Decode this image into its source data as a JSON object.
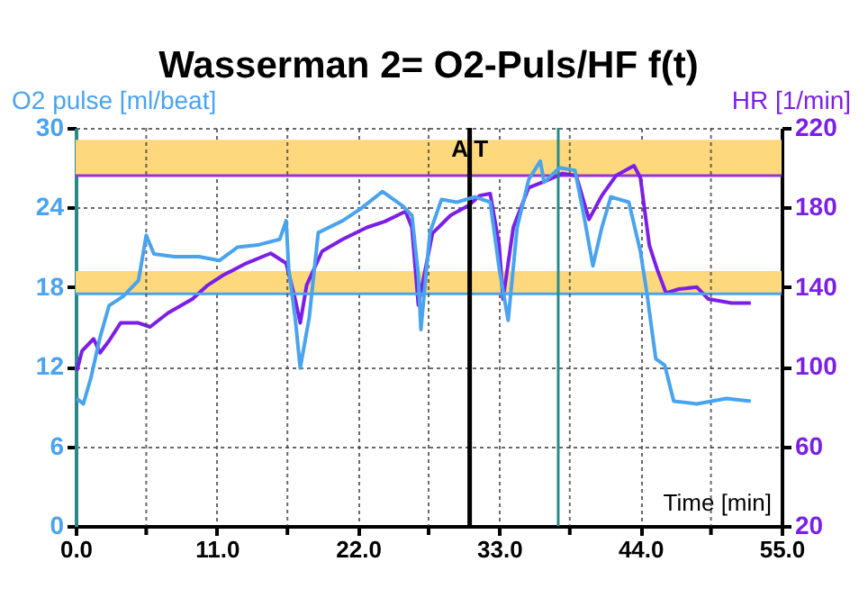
{
  "chart_data": {
    "type": "line",
    "title": "Wasserman 2= O2-Puls/HF f(t)",
    "xlabel": "Time [min]",
    "ylabel": "O2 pulse [ml/beat]",
    "y2label": "HR [1/min]",
    "xlim": [
      0,
      55
    ],
    "xticks": [
      {
        "value": 0,
        "label": "0.0"
      },
      {
        "value": 5.5,
        "label": null
      },
      {
        "value": 11,
        "label": "11.0"
      },
      {
        "value": 16.5,
        "label": null
      },
      {
        "value": 22,
        "label": "22.0"
      },
      {
        "value": 27.5,
        "label": null
      },
      {
        "value": 33,
        "label": "33.0"
      },
      {
        "value": 38.5,
        "label": null
      },
      {
        "value": 44,
        "label": "44.0"
      },
      {
        "value": 49.5,
        "label": null
      },
      {
        "value": 55,
        "label": "55.0"
      }
    ],
    "ylim": [
      0,
      30
    ],
    "yticks": [
      0,
      6,
      12,
      18,
      24,
      30
    ],
    "y2lim": [
      20,
      220
    ],
    "y2ticks": [
      20,
      60,
      100,
      140,
      180,
      220
    ],
    "grid": true,
    "series": [
      {
        "color": "#4aa3ef",
        "x": [
          0.1,
          0.6,
          1.2,
          1.9,
          2.6,
          3.7,
          4.9,
          5.5,
          6.1,
          7.7,
          9.6,
          11.2,
          12.6,
          14.3,
          15.9,
          16.4,
          16.6,
          17.1,
          17.5,
          18.2,
          18.9,
          20.8,
          22.2,
          23.9,
          25.5,
          26.2,
          26.7,
          26.9,
          27.6,
          28.5,
          29.7,
          31.1,
          32.3,
          33.0,
          33.7,
          34.4,
          35.3,
          36.2,
          36.5,
          37.7,
          38.9,
          39.6,
          40.3,
          41.0,
          41.7,
          43.1,
          44.0,
          44.5,
          45.2,
          45.9,
          46.6,
          48.4,
          50.7,
          52.6
        ],
        "values": [
          9.6,
          9.2,
          11.2,
          14.2,
          16.6,
          17.3,
          18.5,
          21.9,
          20.5,
          20.3,
          20.3,
          20.0,
          21.0,
          21.2,
          21.6,
          23.0,
          19.4,
          15.7,
          11.9,
          15.7,
          22.1,
          23.0,
          23.9,
          25.2,
          24.1,
          23.4,
          18.9,
          14.8,
          22.1,
          24.6,
          24.4,
          24.8,
          24.4,
          19.4,
          15.5,
          22.5,
          26.1,
          27.5,
          25.9,
          27.0,
          26.8,
          23.4,
          19.6,
          22.5,
          24.8,
          24.4,
          20.7,
          17.6,
          12.6,
          12.1,
          9.4,
          9.2,
          9.6,
          9.4
        ]
      },
      {
        "color": "#7b1fe6",
        "axis": "y2",
        "x": [
          0.1,
          0.5,
          1.4,
          1.9,
          2.6,
          3.5,
          4.9,
          5.8,
          7.2,
          9.1,
          10.3,
          11.5,
          13.3,
          15.2,
          16.4,
          17.1,
          17.5,
          18.0,
          19.2,
          20.8,
          22.7,
          24.1,
          25.7,
          26.2,
          26.7,
          27.8,
          29.2,
          30.6,
          31.5,
          32.3,
          33.0,
          33.3,
          34.1,
          35.3,
          36.5,
          37.9,
          39.0,
          40.0,
          41.0,
          42.1,
          43.5,
          44.0,
          44.7,
          45.3,
          46.0,
          47.0,
          48.4,
          49.3,
          51.1,
          52.6
        ],
        "values": [
          98,
          108,
          114,
          107,
          113,
          122,
          122,
          120,
          127,
          134,
          141,
          146,
          152,
          157,
          152,
          134,
          122,
          141,
          158,
          164,
          170,
          173,
          178,
          170,
          131,
          167,
          176,
          181,
          186,
          187,
          161,
          134,
          170,
          190,
          193,
          197,
          196,
          174,
          186,
          196,
          201,
          195,
          161,
          149,
          137,
          139,
          140,
          134,
          132,
          132
        ]
      }
    ],
    "bands": [
      {
        "axis": "y2",
        "from": 196,
        "to": 214,
        "color": "#fdd87c"
      },
      {
        "axis": "y2",
        "from": 137,
        "to": 148,
        "color": "#fdd87c"
      }
    ],
    "ref_lines": [
      {
        "axis": "y2",
        "value": 196,
        "color": "#9b30e0"
      },
      {
        "axis": "y",
        "value": 17.5,
        "color": "#4aa3ef"
      },
      {
        "axis": "x",
        "value": 30.7,
        "color": "#000000",
        "label": "A T"
      },
      {
        "axis": "x",
        "value": 37.6,
        "color": "#2a8a8a"
      }
    ]
  }
}
